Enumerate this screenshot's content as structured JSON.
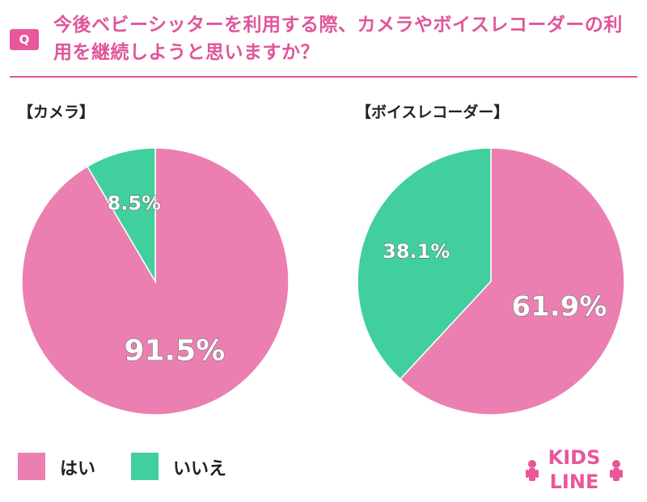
{
  "question": {
    "badge": "Q",
    "text": "今後ベビーシッターを利用する際、カメラやボイスレコーダーの利用を継続しようと思いますか？"
  },
  "colors": {
    "yes": "#ec7fb1",
    "no": "#41d09d",
    "accent": "#e0559a"
  },
  "legend": [
    {
      "label": "はい",
      "color": "#ec7fb1"
    },
    {
      "label": "いいえ",
      "color": "#41d09d"
    }
  ],
  "logo": {
    "line1": "KIDS",
    "line2": "LINE"
  },
  "chart_data": [
    {
      "type": "pie",
      "title": "【カメラ】",
      "categories": [
        "はい",
        "いいえ"
      ],
      "values": [
        91.5,
        8.5
      ],
      "labels": [
        "91.5%",
        "8.5%"
      ],
      "colors": [
        "#ec7fb1",
        "#41d09d"
      ]
    },
    {
      "type": "pie",
      "title": "【ボイスレコーダー】",
      "categories": [
        "はい",
        "いいえ"
      ],
      "values": [
        61.9,
        38.1
      ],
      "labels": [
        "61.9%",
        "38.1%"
      ],
      "colors": [
        "#ec7fb1",
        "#41d09d"
      ]
    }
  ]
}
